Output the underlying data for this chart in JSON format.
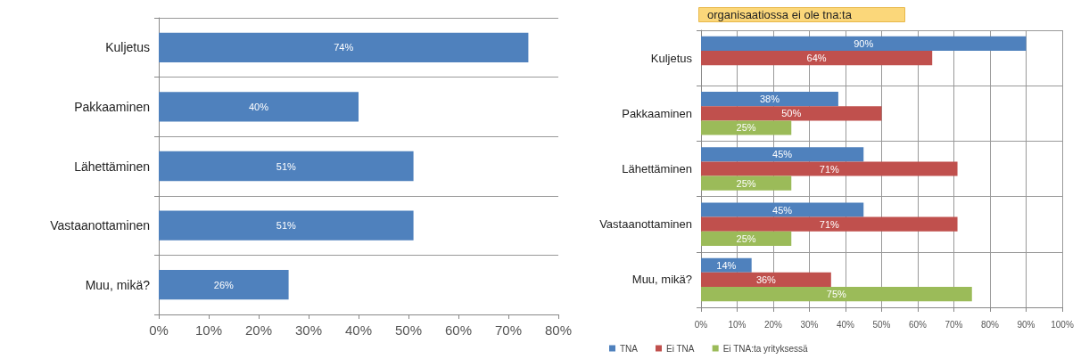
{
  "chart_data": [
    {
      "type": "bar",
      "orientation": "horizontal",
      "categories": [
        "Kuljetus",
        "Pakkaaminen",
        "Lähettäminen",
        "Vastaanottaminen",
        "Muu, mikä?"
      ],
      "series": [
        {
          "color": "#4f81bd",
          "values": [
            74,
            40,
            51,
            51,
            26
          ],
          "value_labels": [
            "74%",
            "40%",
            "51%",
            "51%",
            "26%"
          ]
        }
      ],
      "xlim": [
        0,
        80
      ],
      "xticks": [
        {
          "value": 0,
          "label": "0%"
        },
        {
          "value": 10,
          "label": "10%"
        },
        {
          "value": 20,
          "label": "20%"
        },
        {
          "value": 30,
          "label": "30%"
        },
        {
          "value": 40,
          "label": "40%"
        },
        {
          "value": 50,
          "label": "50%"
        },
        {
          "value": 60,
          "label": "60%"
        },
        {
          "value": 70,
          "label": "70%"
        },
        {
          "value": 80,
          "label": "80%"
        }
      ],
      "grid": "y"
    },
    {
      "type": "bar",
      "orientation": "horizontal",
      "title": "organisaatiossa ei ole tna:ta",
      "categories": [
        "Kuljetus",
        "Pakkaaminen",
        "Lähettäminen",
        "Vastaanottaminen",
        "Muu, mikä?"
      ],
      "series": [
        {
          "name": "TNA",
          "color": "#4f81bd",
          "values": [
            90,
            38,
            45,
            45,
            14
          ],
          "value_labels": [
            "90%",
            "38%",
            "45%",
            "45%",
            "14%"
          ]
        },
        {
          "name": "Ei TNA",
          "color": "#c0504d",
          "values": [
            64,
            50,
            71,
            71,
            36
          ],
          "value_labels": [
            "64%",
            "50%",
            "71%",
            "71%",
            "36%"
          ]
        },
        {
          "name": "Ei TNA:ta yrityksessä",
          "color": "#9bbb59",
          "values": [
            null,
            25,
            25,
            25,
            75
          ],
          "value_labels": [
            null,
            "25%",
            "25%",
            "25%",
            "75%"
          ]
        }
      ],
      "xlim": [
        0,
        100
      ],
      "xticks": [
        {
          "value": 0,
          "label": "0%"
        },
        {
          "value": 10,
          "label": "10%"
        },
        {
          "value": 20,
          "label": "20%"
        },
        {
          "value": 30,
          "label": "30%"
        },
        {
          "value": 40,
          "label": "40%"
        },
        {
          "value": 50,
          "label": "50%"
        },
        {
          "value": 60,
          "label": "60%"
        },
        {
          "value": 70,
          "label": "70%"
        },
        {
          "value": 80,
          "label": "80%"
        },
        {
          "value": 90,
          "label": "90%"
        },
        {
          "value": 100,
          "label": "100%"
        }
      ],
      "grid": true,
      "legend": "bottom"
    }
  ]
}
